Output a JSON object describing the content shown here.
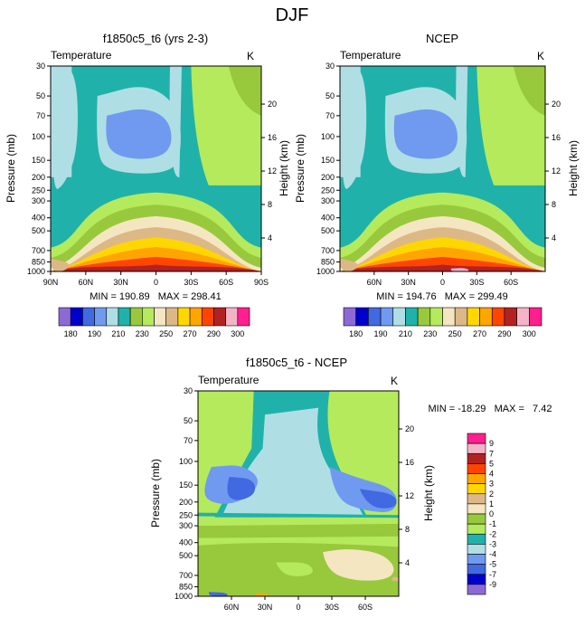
{
  "page_title": "DJF",
  "colors": {
    "abs_palette": [
      "#8c6ad6",
      "#0000cd",
      "#4169e1",
      "#6f9af0",
      "#afdfe4",
      "#20b2aa",
      "#98c93c",
      "#b5ea5c",
      "#f5e6c2",
      "#ddb887",
      "#ffd700",
      "#ffa500",
      "#ff4500",
      "#b22222",
      "#f4b4c8",
      "#ff1f8f"
    ],
    "diff_palette": [
      "#8c6ad6",
      "#0000cd",
      "#4169e1",
      "#6f9af0",
      "#afdfe4",
      "#20b2aa",
      "#b5ea5c",
      "#98c93c",
      "#f5e6c2",
      "#ddb887",
      "#ffd700",
      "#ffa500",
      "#ff4500",
      "#b22222",
      "#f4b4c8",
      "#ff1f8f"
    ]
  },
  "chart_data": [
    {
      "type": "heatmap",
      "title": "f1850c5_t6 (yrs 2-3)",
      "left_label": "Temperature",
      "right_label": "K",
      "ylabel": "Pressure (mb)",
      "y2label": "Height (km)",
      "x_ticks": [
        "90N",
        "60N",
        "30N",
        "0",
        "30S",
        "60S",
        "90S"
      ],
      "x_values": [
        90,
        60,
        30,
        0,
        -30,
        -60,
        -90
      ],
      "xlim": [
        90,
        -90
      ],
      "y_ticks": [
        "30",
        "50",
        "70",
        "100",
        "150",
        "200",
        "250",
        "300",
        "400",
        "500",
        "700",
        "850",
        "1000"
      ],
      "y_values": [
        30,
        50,
        70,
        100,
        150,
        200,
        250,
        300,
        400,
        500,
        700,
        850,
        1000
      ],
      "ylim": [
        30,
        1000
      ],
      "y2_ticks": [
        "20",
        "16",
        "12",
        "8",
        "4"
      ],
      "y2_values": [
        20,
        16,
        12,
        8,
        4
      ],
      "stats": "MIN = 190.89   MAX = 298.41",
      "min": 190.89,
      "max": 298.41,
      "contour_levels": [
        180,
        185,
        190,
        195,
        200,
        205,
        210,
        220,
        230,
        240,
        250,
        260,
        270,
        280,
        290,
        300
      ],
      "colorbar_labels": [
        "180",
        "190",
        "210",
        "230",
        "250",
        "270",
        "290",
        "300"
      ]
    },
    {
      "type": "heatmap",
      "title": "NCEP",
      "left_label": "Temperature",
      "right_label": "K",
      "ylabel": "Pressure (mb)",
      "y2label": "Height (km)",
      "x_ticks": [
        "60N",
        "30N",
        "0",
        "30S",
        "60S"
      ],
      "x_values": [
        60,
        30,
        0,
        -30,
        -60
      ],
      "xlim": [
        90,
        -90
      ],
      "y_ticks": [
        "30",
        "50",
        "70",
        "100",
        "150",
        "200",
        "250",
        "300",
        "400",
        "500",
        "700",
        "850",
        "1000"
      ],
      "y_values": [
        30,
        50,
        70,
        100,
        150,
        200,
        250,
        300,
        400,
        500,
        700,
        850,
        1000
      ],
      "ylim": [
        30,
        1000
      ],
      "y2_ticks": [
        "20",
        "16",
        "12",
        "8",
        "4"
      ],
      "y2_values": [
        20,
        16,
        12,
        8,
        4
      ],
      "stats": "MIN = 194.76   MAX = 299.49",
      "min": 194.76,
      "max": 299.49,
      "contour_levels": [
        180,
        185,
        190,
        195,
        200,
        205,
        210,
        220,
        230,
        240,
        250,
        260,
        270,
        280,
        290,
        300
      ],
      "colorbar_labels": [
        "180",
        "190",
        "210",
        "230",
        "250",
        "270",
        "290",
        "300"
      ]
    },
    {
      "type": "heatmap",
      "title": "f1850c5_t6 - NCEP",
      "left_label": "Temperature",
      "right_label": "K",
      "ylabel": "Pressure (mb)",
      "y2label": "Height (km)",
      "x_ticks": [
        "60N",
        "30N",
        "0",
        "30S",
        "60S"
      ],
      "x_values": [
        60,
        30,
        0,
        -30,
        -60
      ],
      "xlim": [
        90,
        -90
      ],
      "y_ticks": [
        "30",
        "50",
        "70",
        "100",
        "150",
        "200",
        "250",
        "300",
        "400",
        "500",
        "700",
        "850",
        "1000"
      ],
      "y_values": [
        30,
        50,
        70,
        100,
        150,
        200,
        250,
        300,
        400,
        500,
        700,
        850,
        1000
      ],
      "ylim": [
        30,
        1000
      ],
      "y2_ticks": [
        "20",
        "16",
        "12",
        "8",
        "4"
      ],
      "y2_values": [
        20,
        16,
        12,
        8,
        4
      ],
      "stats": "MIN = -18.29   MAX =   7.42",
      "min": -18.29,
      "max": 7.42,
      "contour_levels": [
        -9,
        -7,
        -5,
        -4,
        -3,
        -2,
        -1,
        0,
        1,
        2,
        3,
        5,
        7,
        9
      ],
      "colorbar_labels": [
        "9",
        "7",
        "5",
        "4",
        "3",
        "2",
        "1",
        "0",
        "-1",
        "-2",
        "-3",
        "-4",
        "-5",
        "-7",
        "-9"
      ]
    }
  ]
}
